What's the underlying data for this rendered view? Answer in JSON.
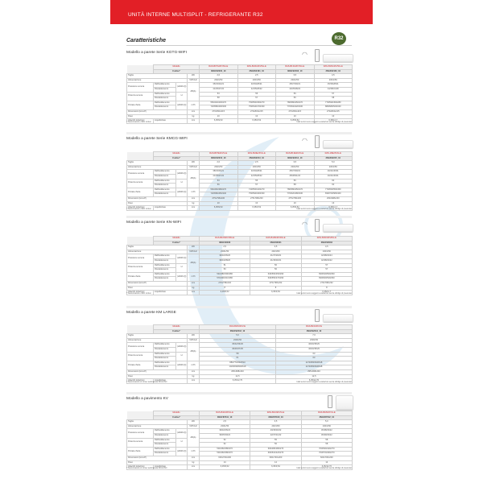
{
  "header": {
    "title": "UNITÀ INTERNE MULTISPLIT - REFRIGERANTE R32"
  },
  "section_heading": "Caratteristiche",
  "badge": "R32",
  "colors": {
    "brand_red": "#e21f26",
    "badge_green": "#4d6b2f"
  },
  "row_labels": {
    "modello": "Modello",
    "codice": "Codice*",
    "taglia": "Taglia",
    "alimentazione": "Alimentazione",
    "pressione": "Pressione sonora",
    "potenza": "Potenza sonora",
    "portata": "Portata d'aria",
    "raff": "Raffreddamento",
    "risc": "Riscaldamento",
    "dimensioni": "Dimensioni (HxLxP)",
    "peso": "Peso",
    "attacchi": "Attacchi tubazioni",
    "liqgas": "Liquido/Gas",
    "hml": "(H/M/L/Q)",
    "h": "H",
    "u_kw": "kW",
    "u_v": "V/Ph/Hz",
    "u_db": "dB(A)",
    "u_m3": "m³/h",
    "u_mm": "mm",
    "u_kg": "kg"
  },
  "disclaimer": "I dati tecnici sono soggetti a variazioni senza obbligo di preavviso",
  "sections": [
    {
      "title": "Modello a parete Serie KGTG-WIFI",
      "icons": [
        "wifi-icon",
        "remote-icon",
        "indoor-unit-image"
      ],
      "footnote": "* Telecomando e WiFi inclusi",
      "columns": [
        {
          "model": "RAS-B07G3KVSG-E",
          "code": "3NGF92234_10",
          "taglia": "2,0",
          "alim": "230/1/50",
          "ps_c": "36/33/24/21",
          "ps_h": "41/35/27/22",
          "pw_c": "53",
          "pw_h": "58",
          "pa_c": "550/440/430/270",
          "pa_h": "720/580/400/330",
          "dim": "270x834x215",
          "peso": "10",
          "att": "6,35/9,52"
        },
        {
          "model": "RAS-B10G3KVSG-E",
          "code": "3NGF92161_10",
          "taglia": "2,5",
          "alim": "230/1/50",
          "ps_c": "40/34/28/21",
          "ps_h": "42/35/28/22",
          "pw_c": "55",
          "pw_h": "57",
          "pa_c": "750/550/450/270",
          "pa_h": "750/540/470/330",
          "dim": "270x834x215",
          "peso": "10",
          "att": "6,35/9,52"
        },
        {
          "model": "RAS-B13G3KVSG-E",
          "code": "3NGF92162_10",
          "taglia": "3,5",
          "alim": "230/1/50",
          "ps_c": "45/37/30/21",
          "ps_h": "42/35/28/22",
          "pw_c": "56",
          "pw_h": "56",
          "pa_c": "780/580/450/270",
          "pa_h": "770/540/420/330",
          "dim": "270x834x215",
          "peso": "10",
          "att": "6,35/9,52"
        },
        {
          "model": "RAS-B16G3KVSG-E",
          "code": "3NGF92163_10",
          "taglia": "4,5",
          "alim": "230/1/50",
          "ps_c": "45/36/28/21",
          "ps_h": "44/38/31/28",
          "pw_c": "57",
          "pw_h": "58",
          "pa_c": "770/590/450/280",
          "pa_h": "880/680/520/340",
          "dim": "270x834x215",
          "peso": "10",
          "att": "6,35/12,7"
        }
      ]
    },
    {
      "title": "Modello a parete Serie KMCG-WIFI",
      "icons": [
        "wifi-icon",
        "remote-icon",
        "indoor-unit-image"
      ],
      "footnote": "* Telecomando e WiFi inclusi",
      "columns": [
        {
          "model": "RAS-B07E2KVG-E",
          "code": "3NGF92212_10",
          "taglia": "2,0",
          "alim": "230/1/50",
          "ps_c": "38/33/26/21",
          "ps_h": "41/35/27/22",
          "pw_c": "53",
          "pw_h": "56",
          "pa_c": "560/460/380/270",
          "pa_h": "720/580/450/330",
          "dim": "275x798x230",
          "peso": "10",
          "att": "6,35/9,52"
        },
        {
          "model": "RAS-B10E2KVG-E",
          "code": "3NGF92213_10",
          "taglia": "2,5",
          "alim": "230/1/50",
          "ps_c": "40/34/28/21",
          "ps_h": "42/35/28/22",
          "pw_c": "55",
          "pw_h": "57",
          "pa_c": "740/550/420/270",
          "pa_h": "750/590/460/330",
          "dim": "275x798x230",
          "peso": "10",
          "att": "6,35/9,52"
        },
        {
          "model": "RAS-B13E2KVG-E",
          "code": "3NGF92214_10",
          "taglia": "3,5",
          "alim": "230/1/50",
          "ps_c": "45/37/30/21",
          "ps_h": "45/38/31/22",
          "pw_c": "56",
          "pw_h": "58",
          "pa_c": "780/580/450/270",
          "pa_h": "770/620/480/330",
          "dim": "275x798x230",
          "peso": "10",
          "att": "6,35/9,52"
        },
        {
          "model": "RAS-18E2KVG-E",
          "code": "3NGF92215_10",
          "taglia": "5,0",
          "alim": "230/1/50",
          "ps_c": "46/41/36/31",
          "ps_h": "46/41/36/31",
          "pw_c": "60",
          "pw_h": "60",
          "pa_c": "770/650/550/450",
          "pa_h": "830/700/580/460",
          "dim": "293x998x230",
          "peso": "13",
          "att": "6,35/12,7"
        }
      ]
    },
    {
      "title": "Modello a parete Serie KN-WIFI",
      "icons": [
        "wifi-icon",
        "remote-icon",
        "indoor-unit-image"
      ],
      "footnote": "* Telecomando e WiFi inclusi",
      "columns": [
        {
          "model": "RAS-B10N4KVRG-E",
          "code": "3NGF90030",
          "taglia": "2,5",
          "alim": "230/1/50",
          "ps_c": "36/32/26/20",
          "ps_h": "39/34/28/20",
          "pw_c": "51",
          "pw_h": "53",
          "pa_c": "540/480/390/280",
          "pa_h": "570/490/410/280",
          "dim": "270x798x232",
          "peso": "8",
          "att": "6,35/9,52"
        },
        {
          "model": "RAS-B13N4KVRG-E",
          "code": "3NGF90031",
          "taglia": "3,5",
          "alim": "230/1/50",
          "ps_c": "41/37/29/21",
          "ps_h": "41/36/30/21",
          "pw_c": "56",
          "pw_h": "56",
          "pa_c": "640/560/450/290",
          "pa_h": "640/550/470/290",
          "dim": "270x798x232",
          "peso": "8",
          "att": "6,35/9,52"
        },
        {
          "model": "RAS-B16N4KVRG-E",
          "code": "3NGF90032",
          "taglia": "4,5",
          "alim": "230/1/50",
          "ps_c": "42/38/32/24",
          "ps_h": "42/38/32/22",
          "pw_c": "57",
          "pw_h": "57",
          "pa_c": "690/620/500/290",
          "pa_h": "690/600/520/290",
          "dim": "270x798x232",
          "peso": "8",
          "att": "6,35/12,7"
        }
      ]
    },
    {
      "title": "Modello a parete KM LARGE",
      "icons": [
        "remote-icon",
        "indoor-unit-image"
      ],
      "footnote": "* Telecomando con timer settimanale INCLUSO",
      "columns": [
        {
          "model": "RAS-B18U2KV-E",
          "code": "3NGF92043_10",
          "taglia": "5,0",
          "alim": "230/1/50",
          "ps_c": "45/42/33/29",
          "ps_h": "45/45/37/35",
          "pw_c": "58",
          "pw_h": "61",
          "pa_c": "880/770/640/510",
          "pa_h": "1020/930/840/618",
          "dim": "295x998x240",
          "peso": "12,5",
          "att": "6,35/12,70"
        },
        {
          "model": "RAS-B24U2KV-E",
          "code": "3NGF92044_10",
          "taglia": "7,0",
          "alim": "230/1/50",
          "ps_c": "46/40/35/29",
          "ps_h": "46/40/35/29",
          "pw_c": "63",
          "pw_h": "63",
          "pa_c": "1170/950/840/618",
          "pa_h": "1170/950/840/618",
          "dim": "295x998x240",
          "peso": "12,5",
          "att": "6,35/12,70"
        }
      ]
    },
    {
      "title": "Modello a pavimento KV",
      "icons": [
        "remote-icon",
        "indoor-unit-image"
      ],
      "footnote": "* Telecomando con timer settimanale INCLUSO",
      "columns": [
        {
          "model": "RAS-B10J2FVG-E",
          "code": "3NGF87041_10",
          "taglia": "2,5",
          "alim": "230/1/50",
          "ps_c": "39/32/26/22",
          "ps_h": "39/35/30/22",
          "pw_c": "52",
          "pw_h": "52",
          "pa_c": "530/460/380/270",
          "pa_h": "530/460/380/270",
          "dim": "600x700x200",
          "peso": "14",
          "att": "6,35/9,52"
        },
        {
          "model": "RAS-B13J2FVG-E",
          "code": "3NGF87040_10",
          "taglia": "3,5",
          "alim": "230/1/50",
          "ps_c": "40/36/30/22",
          "ps_h": "42/37/31/22",
          "pw_c": "55",
          "pw_h": "56",
          "pa_c": "600/480/380/270",
          "pa_h": "600/510/420/270",
          "dim": "600x700x200",
          "peso": "14",
          "att": "6,35/9,52"
        },
        {
          "model": "RAS-B18J2FVG-E",
          "code": "3NGF87042_10",
          "taglia": "5,0",
          "alim": "230/1/50",
          "ps_c": "45/38/33/22",
          "ps_h": "45/39/33/22",
          "pw_c": "58",
          "pw_h": "58",
          "pa_c": "700/560/440/270",
          "pa_h": "700/570/460/270",
          "dim": "600x700x200",
          "peso": "14",
          "att": "6,35/12,70"
        }
      ]
    }
  ]
}
